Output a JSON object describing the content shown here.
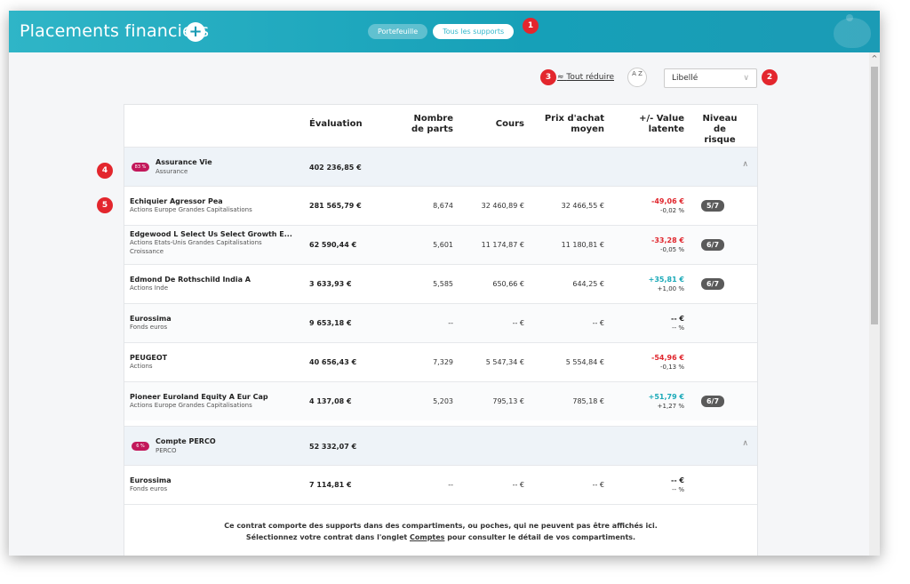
{
  "header": {
    "title": "Placements financiers",
    "add_label": "+",
    "tabs": [
      "Portefeuille",
      "Tous les supports"
    ]
  },
  "badges": [
    "1",
    "2",
    "3",
    "4",
    "5"
  ],
  "toolbar": {
    "collapse_label": "Tout réduire",
    "sort_label": "A Z",
    "select_value": "Libellé"
  },
  "columns": {
    "evaluation": "Évaluation",
    "parts_1": "Nombre",
    "parts_2": "de parts",
    "cours": "Cours",
    "prix_1": "Prix d'achat",
    "prix_2": "moyen",
    "value_1": "+/- Value",
    "value_2": "latente",
    "risk_1": "Niveau",
    "risk_2": "de risque"
  },
  "groups": [
    {
      "pill": "83 %",
      "name": "Assurance Vie",
      "type": "Assurance",
      "total": "402 236,85 €",
      "rows": [
        {
          "name": "Echiquier Agressor Pea",
          "sub1": "Actions Europe Grandes Capitalisations",
          "sub2": "",
          "eval": "281 565,79 €",
          "parts": "8,674",
          "cours": "32 460,89 €",
          "prix": "32 466,55 €",
          "value": "-49,06 €",
          "pct": "-0,02 %",
          "risk": "5/7"
        },
        {
          "name": "Edgewood L Select Us Select Growth E...",
          "sub1": "Actions Etats-Unis Grandes Capitalisations",
          "sub2": "Croissance",
          "eval": "62 590,44 €",
          "parts": "5,601",
          "cours": "11 174,87 €",
          "prix": "11 180,81 €",
          "value": "-33,28 €",
          "pct": "-0,05 %",
          "risk": "6/7"
        },
        {
          "name": "Edmond De Rothschild India A",
          "sub1": "Actions Inde",
          "sub2": "",
          "eval": "3 633,93 €",
          "parts": "5,585",
          "cours": "650,66 €",
          "prix": "644,25 €",
          "value": "+35,81 €",
          "pct": "+1,00 %",
          "risk": "6/7"
        },
        {
          "name": "Eurossima",
          "sub1": "Fonds euros",
          "sub2": "",
          "eval": "9 653,18 €",
          "parts": "--",
          "cours": "-- €",
          "prix": "-- €",
          "value": "-- €",
          "pct": "-- %",
          "risk": ""
        },
        {
          "name": "PEUGEOT",
          "sub1": "Actions",
          "sub2": "",
          "eval": "40 656,43 €",
          "parts": "7,329",
          "cours": "5 547,34 €",
          "prix": "5 554,84 €",
          "value": "-54,96 €",
          "pct": "-0,13 %",
          "risk": ""
        },
        {
          "name": "Pioneer Euroland Equity A Eur Cap",
          "sub1": "Actions Europe Grandes Capitalisations",
          "sub2": "",
          "eval": "4 137,08 €",
          "parts": "5,203",
          "cours": "795,13 €",
          "prix": "785,18 €",
          "value": "+51,79 €",
          "pct": "+1,27 %",
          "risk": "6/7"
        }
      ]
    },
    {
      "pill": "6 %",
      "name": "Compte PERCO",
      "type": "PERCO",
      "total": "52 332,07 €",
      "rows": [
        {
          "name": "Eurossima",
          "sub1": "Fonds euros",
          "sub2": "",
          "eval": "7 114,81 €",
          "parts": "--",
          "cours": "-- €",
          "prix": "-- €",
          "value": "-- €",
          "pct": "-- %",
          "risk": ""
        }
      ]
    }
  ],
  "footer": {
    "line1": "Ce contrat comporte des supports dans des compartiments, ou poches, qui ne peuvent pas être affichés ici.",
    "line2_a": "Sélectionnez votre contrat dans l'onglet ",
    "line2_link": "Comptes",
    "line2_b": " pour consulter le détail de vos compartiments."
  }
}
